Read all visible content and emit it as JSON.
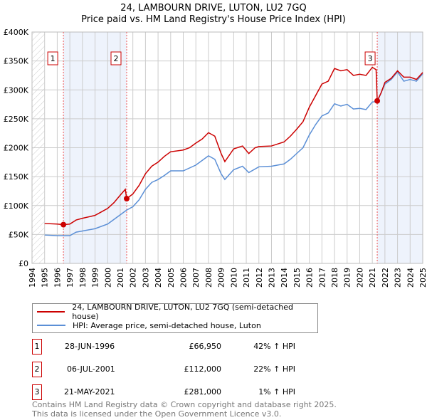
{
  "title": "24, LAMBOURN DRIVE, LUTON, LU2 7GQ",
  "subtitle": "Price paid vs. HM Land Registry's House Price Index (HPI)",
  "chart_data": {
    "type": "line",
    "title": "24, LAMBOURN DRIVE, LUTON, LU2 7GQ — Price paid vs. HM Land Registry's House Price Index (HPI)",
    "xlim": [
      1994,
      2025
    ],
    "ylim": [
      0,
      400000
    ],
    "yticks": [
      0,
      50000,
      100000,
      150000,
      200000,
      250000,
      300000,
      350000,
      400000
    ],
    "ytick_labels": [
      "£0",
      "£50K",
      "£100K",
      "£150K",
      "£200K",
      "£250K",
      "£300K",
      "£350K",
      "£400K"
    ],
    "xticks": [
      1994,
      1995,
      1996,
      1997,
      1998,
      1999,
      2000,
      2001,
      2002,
      2003,
      2004,
      2005,
      2006,
      2007,
      2008,
      2009,
      2010,
      2011,
      2012,
      2013,
      2014,
      2015,
      2016,
      2017,
      2018,
      2019,
      2020,
      2021,
      2022,
      2023,
      2024,
      2025
    ],
    "grid": true,
    "legend_position": "below",
    "colors": {
      "property": "#cc0000",
      "hpi": "#5b8fd6",
      "shade": "#eef3fc"
    },
    "series": [
      {
        "name": "24, LAMBOURN DRIVE, LUTON, LU2 7GQ (semi-detached house)",
        "x": [
          1995,
          1996,
          1996.49,
          1997,
          1997.5,
          1998,
          1999,
          1999.5,
          2000,
          2000.5,
          2001,
          2001.4,
          2001.51,
          2002,
          2002.5,
          2003,
          2003.5,
          2004,
          2004.5,
          2005,
          2006,
          2006.5,
          2007,
          2007.5,
          2008,
          2008.5,
          2009,
          2009.3,
          2010,
          2010.7,
          2011.2,
          2011.7,
          2012,
          2013,
          2014,
          2014.5,
          2015,
          2015.5,
          2016,
          2016.5,
          2017,
          2017.5,
          2018,
          2018.5,
          2019,
          2019.5,
          2020,
          2020.5,
          2021,
          2021.3,
          2021.39,
          2021.7,
          2022,
          2022.5,
          2023,
          2023.5,
          2024,
          2024.5,
          2025
        ],
        "values": [
          69000,
          68000,
          66950,
          68000,
          75000,
          78000,
          83000,
          89000,
          95000,
          105000,
          118000,
          128000,
          112000,
          120000,
          135000,
          155000,
          168000,
          175000,
          185000,
          193000,
          196000,
          200000,
          208000,
          215000,
          226000,
          220000,
          190000,
          176000,
          198000,
          203000,
          190000,
          200000,
          202000,
          203000,
          210000,
          220000,
          232000,
          245000,
          270000,
          290000,
          310000,
          315000,
          337000,
          333000,
          335000,
          325000,
          327000,
          325000,
          339000,
          335000,
          281000,
          295000,
          313000,
          320000,
          333000,
          322000,
          322000,
          318000,
          330000
        ]
      },
      {
        "name": "HPI: Average price, semi-detached house, Luton",
        "x": [
          1995,
          1996,
          1997,
          1997.5,
          1998,
          1999,
          2000,
          2000.5,
          2001,
          2001.5,
          2002,
          2002.5,
          2003,
          2003.5,
          2004,
          2004.5,
          2005,
          2006,
          2007,
          2007.5,
          2008,
          2008.5,
          2009,
          2009.3,
          2010,
          2010.7,
          2011.2,
          2012,
          2013,
          2014,
          2014.5,
          2015,
          2015.5,
          2016,
          2016.5,
          2017,
          2017.5,
          2018,
          2018.5,
          2019,
          2019.5,
          2020,
          2020.5,
          2021,
          2021.4,
          2022,
          2022.5,
          2023,
          2023.5,
          2024,
          2024.5,
          2025
        ],
        "values": [
          49000,
          48000,
          48000,
          54000,
          56000,
          60000,
          68000,
          76000,
          84000,
          92000,
          98000,
          110000,
          128000,
          140000,
          145000,
          152000,
          160000,
          160000,
          170000,
          178000,
          186000,
          180000,
          155000,
          145000,
          162000,
          168000,
          157000,
          167000,
          168000,
          172000,
          180000,
          190000,
          200000,
          222000,
          240000,
          255000,
          260000,
          276000,
          272000,
          275000,
          267000,
          268000,
          266000,
          279000,
          280000,
          310000,
          318000,
          331000,
          315000,
          318000,
          315000,
          328000
        ]
      }
    ],
    "sales": [
      {
        "label": "1",
        "x": 1996.49,
        "value": 66950
      },
      {
        "label": "2",
        "x": 2001.51,
        "value": 112000
      },
      {
        "label": "3",
        "x": 2021.39,
        "value": 281000
      }
    ]
  },
  "legend": {
    "property": "24, LAMBOURN DRIVE, LUTON, LU2 7GQ (semi-detached house)",
    "hpi": "HPI: Average price, semi-detached house, Luton"
  },
  "transactions": [
    {
      "num": "1",
      "date": "28-JUN-1996",
      "price": "£66,950",
      "hpi": "42% ↑ HPI"
    },
    {
      "num": "2",
      "date": "06-JUL-2001",
      "price": "£112,000",
      "hpi": "22% ↑ HPI"
    },
    {
      "num": "3",
      "date": "21-MAY-2021",
      "price": "£281,000",
      "hpi": "1% ↑ HPI"
    }
  ],
  "footer": {
    "line1": "Contains HM Land Registry data © Crown copyright and database right 2025.",
    "line2": "This data is licensed under the Open Government Licence v3.0."
  }
}
